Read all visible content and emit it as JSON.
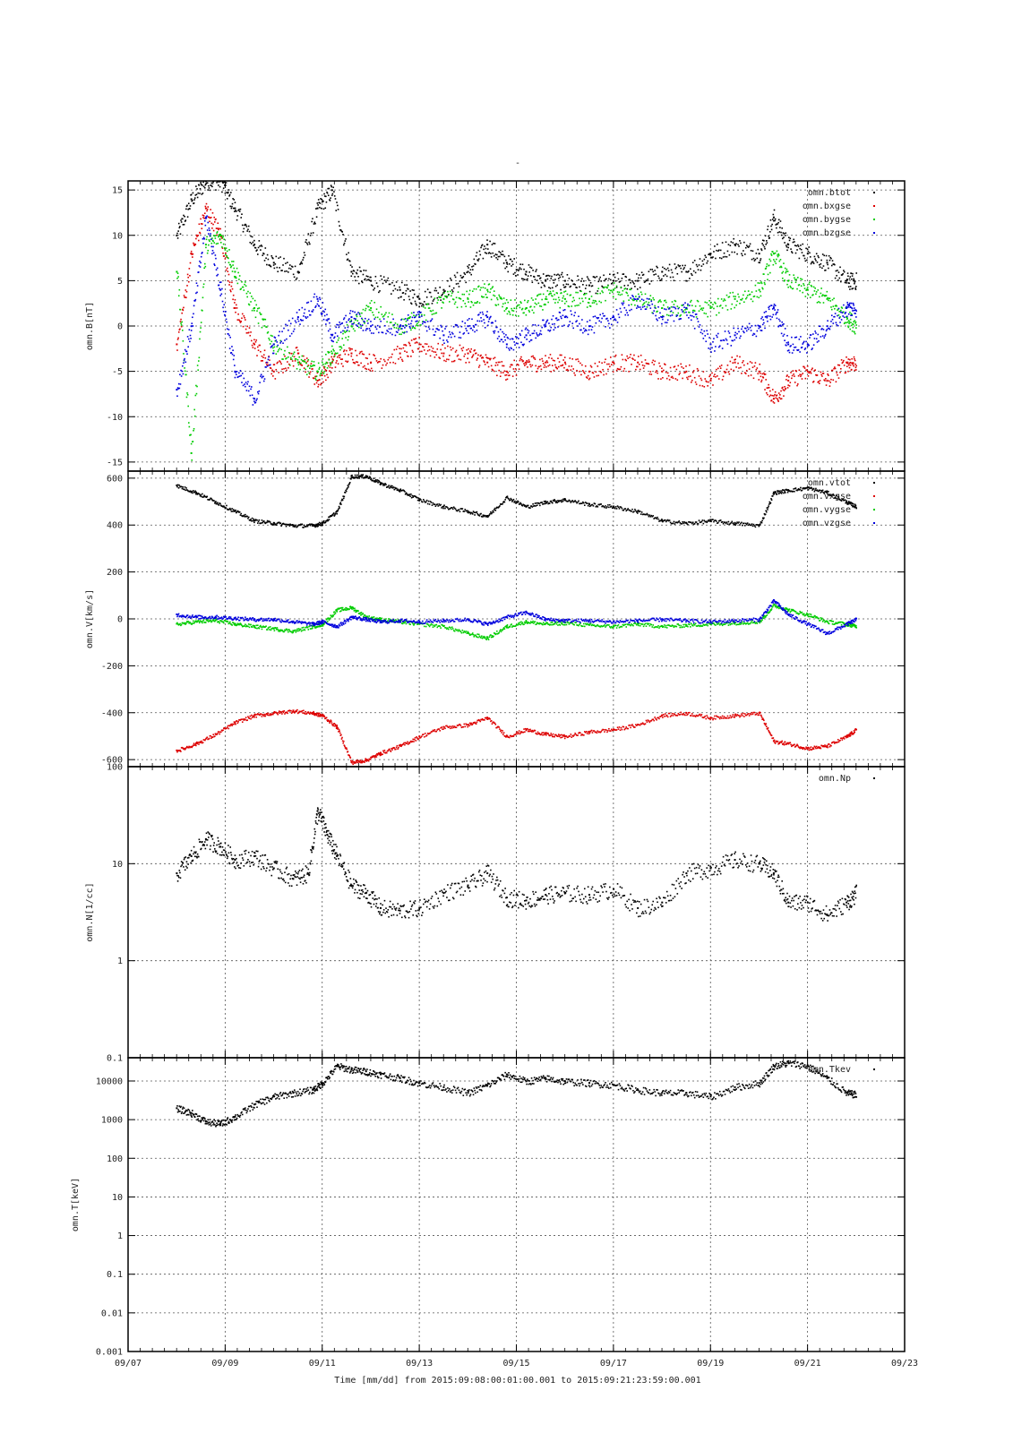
{
  "figure": {
    "title": "-",
    "footer": "Time [mm/dd]  from 2015:09:08:00:01:00.001  to  2015:09:21:23:59:00.001",
    "x_tick_labels": [
      "09/07",
      "09/09",
      "09/11",
      "09/13",
      "09/15",
      "09/17",
      "09/19",
      "09/21",
      "09/23"
    ]
  },
  "chart_data": [
    {
      "type": "scatter",
      "ylabel": "omn.B[nT]",
      "ylim": [
        -16,
        16
      ],
      "yscale": "linear",
      "y_ticks": [
        -15,
        -10,
        -5,
        0,
        5,
        10,
        15
      ],
      "grid": true,
      "legend_placement": "top-right",
      "x_unit": "day of September 2015",
      "xlim": [
        7,
        23
      ],
      "series": [
        {
          "name": "omn.btot",
          "color": "#000000",
          "x": [
            8.0,
            8.3,
            8.6,
            8.9,
            9.2,
            9.6,
            10.0,
            10.5,
            10.9,
            11.2,
            11.6,
            12.0,
            12.6,
            13.0,
            13.5,
            14.0,
            14.4,
            14.8,
            15.2,
            15.6,
            16.0,
            16.5,
            17.0,
            17.5,
            18.0,
            18.5,
            19.0,
            19.5,
            20.0,
            20.3,
            20.6,
            21.0,
            21.4,
            21.8,
            22.0
          ],
          "y": [
            10,
            14,
            16,
            16,
            13,
            9,
            7,
            6,
            13,
            15,
            6,
            5,
            4,
            3,
            4,
            6,
            9,
            7,
            6,
            5,
            5,
            4.5,
            5,
            5,
            6,
            6,
            8,
            9,
            8,
            12,
            9,
            8,
            7,
            5,
            5
          ]
        },
        {
          "name": "omn.bxgse",
          "color": "#dd0000",
          "x": [
            8.0,
            8.3,
            8.6,
            8.9,
            9.2,
            9.6,
            10.0,
            10.5,
            10.9,
            11.2,
            11.6,
            12.0,
            12.6,
            13.0,
            13.5,
            14.0,
            14.4,
            14.8,
            15.2,
            15.6,
            16.0,
            16.5,
            17.0,
            17.5,
            18.0,
            18.5,
            19.0,
            19.5,
            20.0,
            20.3,
            20.6,
            21.0,
            21.4,
            21.8,
            22.0
          ],
          "y": [
            -2,
            8,
            13,
            10,
            2,
            -2,
            -5,
            -3,
            -6,
            -4,
            -3,
            -4,
            -3,
            -2,
            -3,
            -3,
            -4,
            -5,
            -4,
            -4,
            -4,
            -5,
            -4,
            -4,
            -5,
            -5,
            -6,
            -4,
            -5,
            -8,
            -6,
            -5,
            -6,
            -4,
            -4
          ]
        },
        {
          "name": "omn.bygse",
          "color": "#00cc00",
          "x": [
            8.0,
            8.3,
            8.6,
            8.9,
            9.2,
            9.6,
            10.0,
            10.5,
            10.9,
            11.2,
            11.6,
            12.0,
            12.6,
            13.0,
            13.5,
            14.0,
            14.4,
            14.8,
            15.2,
            15.6,
            16.0,
            16.5,
            17.0,
            17.5,
            18.0,
            18.5,
            19.0,
            19.5,
            20.0,
            20.3,
            20.6,
            21.0,
            21.4,
            21.8,
            22.0
          ],
          "y": [
            6,
            -14,
            9,
            10,
            6,
            2,
            -2,
            -4,
            -5,
            -3,
            0,
            2,
            0,
            1,
            3,
            3,
            4,
            2,
            2,
            3,
            3,
            3,
            4,
            3,
            2,
            2,
            2,
            3,
            4,
            8,
            5,
            4,
            3,
            1,
            0
          ]
        },
        {
          "name": "omn.bzgse",
          "color": "#0000dd",
          "x": [
            8.0,
            8.3,
            8.6,
            8.9,
            9.2,
            9.6,
            10.0,
            10.5,
            10.9,
            11.2,
            11.6,
            12.0,
            12.6,
            13.0,
            13.5,
            14.0,
            14.4,
            14.8,
            15.2,
            15.6,
            16.0,
            16.5,
            17.0,
            17.5,
            18.0,
            18.5,
            19.0,
            19.5,
            20.0,
            20.3,
            20.6,
            21.0,
            21.4,
            21.8,
            22.0
          ],
          "y": [
            -7,
            0,
            12,
            4,
            -5,
            -8,
            -2,
            1,
            3,
            -1,
            1,
            0,
            0,
            1,
            -1,
            0,
            1,
            -2,
            -1,
            0,
            1,
            0,
            1,
            3,
            1,
            2,
            -2,
            -1,
            0,
            2,
            -2,
            -2,
            0,
            2,
            2
          ]
        }
      ]
    },
    {
      "type": "scatter",
      "ylabel": "omn.V[km/s]",
      "ylim": [
        -630,
        630
      ],
      "yscale": "linear",
      "y_ticks": [
        -600,
        -400,
        -200,
        0,
        200,
        400,
        600
      ],
      "grid": true,
      "legend_placement": "top-right",
      "x_unit": "day of September 2015",
      "xlim": [
        7,
        23
      ],
      "series": [
        {
          "name": "omn.vtot",
          "color": "#000000",
          "x": [
            8.0,
            8.4,
            8.8,
            9.2,
            9.6,
            10.0,
            10.4,
            10.8,
            11.0,
            11.3,
            11.6,
            11.9,
            12.2,
            12.6,
            13.0,
            13.5,
            14.0,
            14.4,
            14.8,
            15.2,
            15.6,
            16.0,
            16.5,
            17.0,
            17.5,
            18.0,
            18.5,
            19.0,
            19.5,
            20.0,
            20.3,
            20.6,
            21.0,
            21.4,
            21.8,
            22.0
          ],
          "y": [
            570,
            540,
            500,
            460,
            420,
            410,
            400,
            400,
            410,
            460,
            610,
            610,
            580,
            550,
            510,
            480,
            460,
            440,
            520,
            480,
            500,
            510,
            490,
            480,
            460,
            420,
            410,
            420,
            410,
            400,
            540,
            550,
            560,
            540,
            500,
            480
          ]
        },
        {
          "name": "omn.vxgse",
          "color": "#dd0000",
          "x": [
            8.0,
            8.4,
            8.8,
            9.2,
            9.6,
            10.0,
            10.4,
            10.8,
            11.0,
            11.3,
            11.6,
            11.9,
            12.2,
            12.6,
            13.0,
            13.5,
            14.0,
            14.4,
            14.8,
            15.2,
            15.6,
            16.0,
            16.5,
            17.0,
            17.5,
            18.0,
            18.5,
            19.0,
            19.5,
            20.0,
            20.3,
            20.6,
            21.0,
            21.4,
            21.8,
            22.0
          ],
          "y": [
            -560,
            -530,
            -490,
            -440,
            -410,
            -400,
            -390,
            -400,
            -410,
            -460,
            -610,
            -600,
            -570,
            -540,
            -500,
            -460,
            -450,
            -420,
            -500,
            -470,
            -490,
            -500,
            -480,
            -470,
            -450,
            -410,
            -400,
            -420,
            -410,
            -400,
            -520,
            -530,
            -550,
            -540,
            -500,
            -470
          ]
        },
        {
          "name": "omn.vygse",
          "color": "#00cc00",
          "x": [
            8.0,
            8.4,
            8.8,
            9.2,
            9.6,
            10.0,
            10.4,
            10.8,
            11.0,
            11.3,
            11.6,
            11.9,
            12.2,
            12.6,
            13.0,
            13.5,
            14.0,
            14.4,
            14.8,
            15.2,
            15.6,
            16.0,
            16.5,
            17.0,
            17.5,
            18.0,
            18.5,
            19.0,
            19.5,
            20.0,
            20.3,
            20.6,
            21.0,
            21.4,
            21.8,
            22.0
          ],
          "y": [
            -20,
            -10,
            -5,
            -20,
            -30,
            -40,
            -50,
            -30,
            -20,
            40,
            50,
            10,
            0,
            -10,
            -20,
            -30,
            -60,
            -80,
            -30,
            -10,
            -20,
            -15,
            -25,
            -30,
            -20,
            -30,
            -25,
            -20,
            -15,
            -10,
            60,
            40,
            20,
            -10,
            -20,
            -30
          ]
        },
        {
          "name": "omn.vzgse",
          "color": "#0000dd",
          "x": [
            8.0,
            8.4,
            8.8,
            9.2,
            9.6,
            10.0,
            10.4,
            10.8,
            11.0,
            11.3,
            11.6,
            11.9,
            12.2,
            12.6,
            13.0,
            13.5,
            14.0,
            14.4,
            14.8,
            15.2,
            15.6,
            16.0,
            16.5,
            17.0,
            17.5,
            18.0,
            18.5,
            19.0,
            19.5,
            20.0,
            20.3,
            20.6,
            21.0,
            21.4,
            21.8,
            22.0
          ],
          "y": [
            20,
            10,
            10,
            5,
            0,
            0,
            -10,
            -20,
            -10,
            -30,
            10,
            0,
            -10,
            -5,
            -10,
            -5,
            0,
            -20,
            10,
            30,
            0,
            -5,
            -5,
            -10,
            -5,
            0,
            -5,
            -10,
            -5,
            0,
            80,
            20,
            -20,
            -60,
            -20,
            0
          ]
        }
      ]
    },
    {
      "type": "scatter",
      "ylabel": "omn.N[1/cc]",
      "ylim": [
        0.1,
        100
      ],
      "yscale": "log",
      "y_tick_labels": [
        "0.1",
        "1",
        "10",
        "100"
      ],
      "y_ticks": [
        0.1,
        1,
        10,
        100
      ],
      "grid": true,
      "legend_placement": "top-right",
      "x_unit": "day of September 2015",
      "xlim": [
        7,
        23
      ],
      "series": [
        {
          "name": "omn.Np",
          "color": "#000000",
          "x": [
            8.0,
            8.3,
            8.6,
            8.9,
            9.2,
            9.6,
            10.0,
            10.4,
            10.7,
            10.9,
            11.1,
            11.3,
            11.6,
            11.9,
            12.2,
            12.6,
            13.0,
            13.5,
            14.0,
            14.4,
            14.8,
            15.2,
            15.6,
            16.0,
            16.5,
            17.0,
            17.5,
            18.0,
            18.5,
            19.0,
            19.5,
            20.0,
            20.3,
            20.6,
            21.0,
            21.4,
            21.8,
            22.0
          ],
          "y": [
            8,
            12,
            18,
            15,
            11,
            12,
            9,
            7,
            8,
            35,
            20,
            12,
            6,
            5,
            3.5,
            3.3,
            3.5,
            5,
            6,
            8,
            4.5,
            4.2,
            4.8,
            5,
            4.8,
            5.5,
            3.5,
            4,
            8,
            9,
            11,
            10,
            8,
            4,
            4,
            3,
            4,
            5
          ]
        }
      ]
    },
    {
      "type": "scatter",
      "ylabel": "omn.T[keV]",
      "ylim": [
        0.001,
        40000
      ],
      "yscale": "log",
      "y_tick_labels": [
        "0.001",
        "0.01",
        "0.1",
        "1",
        "10",
        "100",
        "1000",
        "10000"
      ],
      "y_ticks": [
        0.001,
        0.01,
        0.1,
        1,
        10,
        100,
        1000,
        10000
      ],
      "grid": true,
      "legend_placement": "top-right",
      "legend_entries": [
        "omn.Tkev"
      ],
      "x_unit": "day of September 2015",
      "xlim": [
        7,
        23
      ],
      "series": [
        {
          "name": "omn.Tkev",
          "color": "#000000",
          "x": [
            8.0,
            8.3,
            8.6,
            8.9,
            9.2,
            9.6,
            10.0,
            10.4,
            10.8,
            11.0,
            11.3,
            11.6,
            11.9,
            12.2,
            12.6,
            13.0,
            13.5,
            14.0,
            14.4,
            14.8,
            15.2,
            15.6,
            16.0,
            16.5,
            17.0,
            17.5,
            18.0,
            18.5,
            19.0,
            19.5,
            20.0,
            20.3,
            20.6,
            21.0,
            21.4,
            21.8,
            22.0
          ],
          "y": [
            2000,
            1500,
            900,
            800,
            1200,
            2500,
            4000,
            5000,
            6000,
            9000,
            25000,
            20000,
            18000,
            15000,
            12000,
            9000,
            7000,
            5000,
            8000,
            15000,
            10000,
            12000,
            10000,
            9000,
            8000,
            6000,
            5000,
            5000,
            4000,
            7000,
            9000,
            25000,
            30000,
            25000,
            12000,
            5000,
            4500
          ]
        }
      ]
    }
  ]
}
